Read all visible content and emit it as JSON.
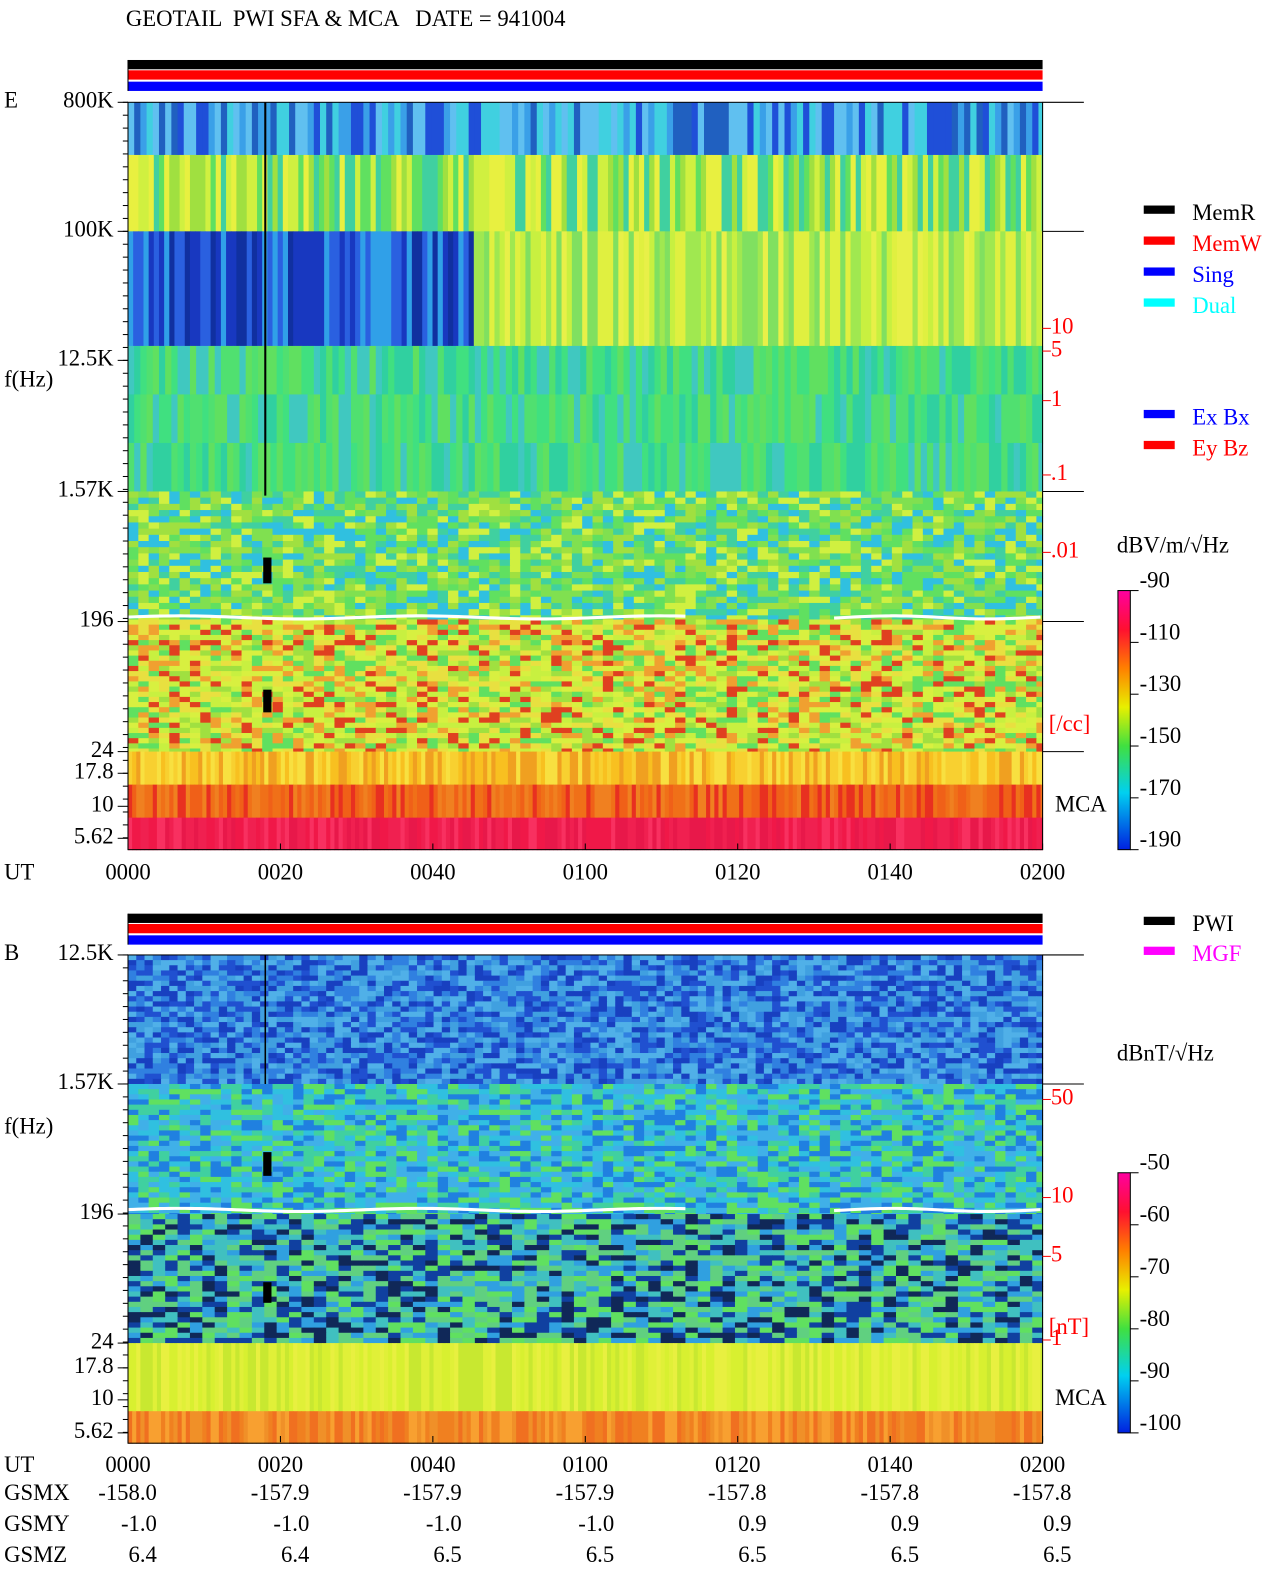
{
  "title": "GEOTAIL  PWI SFA & MCA   DATE = 941004",
  "legend_modes": [
    {
      "name": "MemR",
      "color": "#000000"
    },
    {
      "name": "MemW",
      "color": "#ff0000"
    },
    {
      "name": "Sing",
      "color": "#0000ff"
    },
    {
      "name": "Dual",
      "color": "#00ffff"
    }
  ],
  "legend_components": [
    {
      "name": "Ex Bx",
      "color": "#0000ff"
    },
    {
      "name": "Ey Bz",
      "color": "#ff0000"
    }
  ],
  "legend_sources": [
    {
      "name": "PWI",
      "color": "#000000"
    },
    {
      "name": "MGF",
      "color": "#ff00ff"
    }
  ],
  "e_panel": {
    "label": "E",
    "axis_title": "f(Hz)",
    "freq_ticks": [
      "800K",
      "100K",
      "12.5K",
      "1.57K",
      "196",
      "24",
      "17.8",
      "10",
      "5.62"
    ],
    "density_ticks": [
      "10",
      "5",
      "1",
      ".1",
      ".01"
    ],
    "density_unit": "[/cc]",
    "mca": "MCA",
    "colorbar_title": "dBV/m/√Hz",
    "colorbar_ticks": [
      -90,
      -110,
      -130,
      -150,
      -170,
      -190
    ]
  },
  "b_panel": {
    "label": "B",
    "axis_title": "f(Hz)",
    "freq_ticks": [
      "12.5K",
      "1.57K",
      "196",
      "24",
      "17.8",
      "10",
      "5.62"
    ],
    "field_ticks": [
      "50",
      "10",
      "5",
      "1"
    ],
    "field_unit": "[nT]",
    "mca": "MCA",
    "colorbar_title": "dBnT/√Hz",
    "colorbar_ticks": [
      -50,
      -60,
      -70,
      -80,
      -90,
      -100
    ]
  },
  "time_axis": {
    "label": "UT",
    "ticks": [
      "0000",
      "0020",
      "0040",
      "0100",
      "0120",
      "0140",
      "0200"
    ]
  },
  "orbit": {
    "rows": [
      {
        "label": "GSMX",
        "values": [
          "-158.0",
          "-157.9",
          "-157.9",
          "-157.9",
          "-157.8",
          "-157.8",
          "-157.8"
        ]
      },
      {
        "label": "GSMY",
        "values": [
          "-1.0",
          "-1.0",
          "-1.0",
          "-1.0",
          "0.9",
          "0.9",
          "0.9"
        ]
      },
      {
        "label": "GSMZ",
        "values": [
          "6.4",
          "6.4",
          "6.5",
          "6.5",
          "6.5",
          "6.5",
          "6.5"
        ]
      }
    ]
  }
}
